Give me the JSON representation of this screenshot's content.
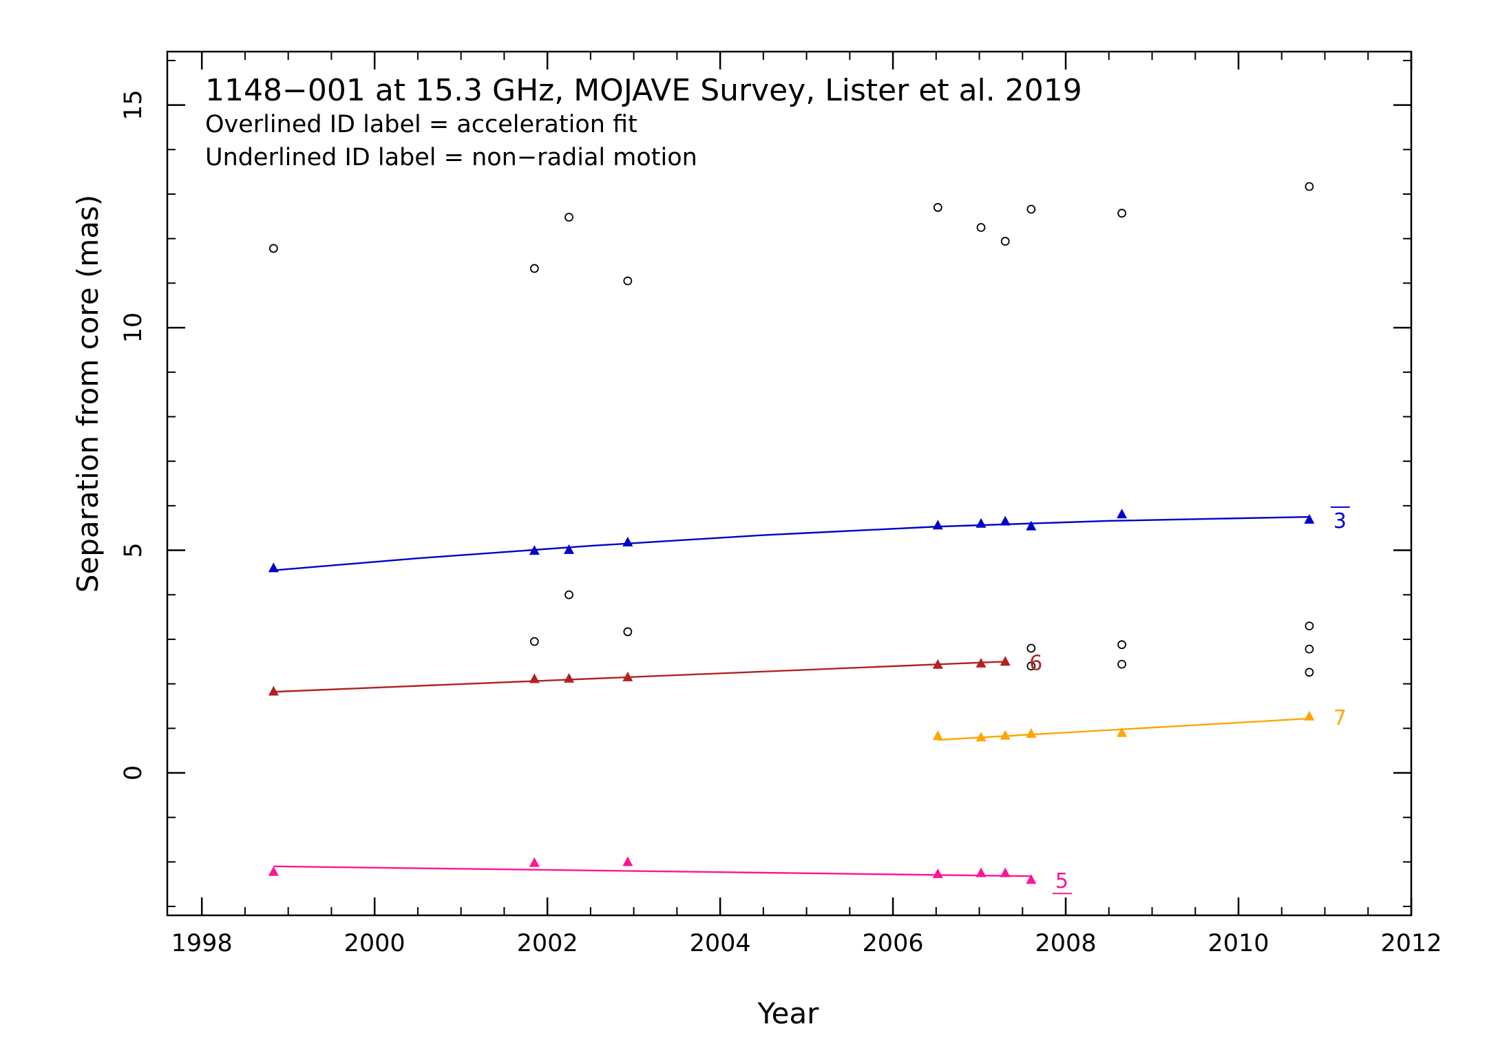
{
  "chart_data": {
    "type": "scatter",
    "title": "1148−001 at 15.3 GHz, MOJAVE Survey, Lister et al. 2019",
    "subtitle_lines": [
      "Overlined ID label = acceleration fit",
      "Underlined ID label = non−radial motion"
    ],
    "xlabel": "Year",
    "ylabel": "Separation from core (mas)",
    "xlim": [
      1997.6,
      2012.0
    ],
    "ylim": [
      -3.2,
      16.2
    ],
    "xticks": [
      1998,
      2000,
      2002,
      2004,
      2006,
      2008,
      2010,
      2012
    ],
    "xtick_labels": [
      "1998",
      "2000",
      "2002",
      "2004",
      "2006",
      "2008",
      "2010",
      "2012"
    ],
    "yticks": [
      0,
      5,
      10,
      15
    ],
    "ytick_labels": [
      "0",
      "5",
      "10",
      "15"
    ],
    "x_minor_step": 0.5,
    "y_minor_step": 1,
    "grid": false,
    "series": [
      {
        "name": "3",
        "label_style": "overline",
        "color": "#0000cc",
        "marker": "triangle",
        "points": [
          [
            1998.83,
            4.6
          ],
          [
            2001.85,
            4.99
          ],
          [
            2002.25,
            5.01
          ],
          [
            2002.93,
            5.18
          ],
          [
            2006.52,
            5.56
          ],
          [
            2007.02,
            5.6
          ],
          [
            2007.3,
            5.65
          ],
          [
            2007.6,
            5.54
          ],
          [
            2008.65,
            5.81
          ],
          [
            2010.82,
            5.69
          ]
        ],
        "fit": [
          [
            1998.83,
            4.55
          ],
          [
            2000.5,
            4.82
          ],
          [
            2002.5,
            5.1
          ],
          [
            2004.5,
            5.34
          ],
          [
            2006.5,
            5.53
          ],
          [
            2008.5,
            5.66
          ],
          [
            2010.82,
            5.75
          ]
        ]
      },
      {
        "name": "6",
        "label_style": "plain",
        "color": "#b22222",
        "marker": "triangle",
        "points": [
          [
            1998.83,
            1.83
          ],
          [
            2001.85,
            2.11
          ],
          [
            2002.25,
            2.12
          ],
          [
            2002.93,
            2.15
          ],
          [
            2006.52,
            2.43
          ],
          [
            2007.02,
            2.46
          ],
          [
            2007.3,
            2.5
          ]
        ],
        "fit": [
          [
            1998.83,
            1.82
          ],
          [
            2007.3,
            2.5
          ]
        ]
      },
      {
        "name": "7",
        "label_style": "plain",
        "color": "#ffa500",
        "marker": "triangle",
        "points": [
          [
            2006.52,
            0.83
          ],
          [
            2007.02,
            0.8
          ],
          [
            2007.3,
            0.84
          ],
          [
            2007.6,
            0.88
          ],
          [
            2008.65,
            0.9
          ],
          [
            2010.82,
            1.27
          ]
        ],
        "fit": [
          [
            2006.52,
            0.74
          ],
          [
            2010.82,
            1.22
          ]
        ]
      },
      {
        "name": "5",
        "label_style": "underline",
        "color": "#ff1493",
        "marker": "triangle",
        "points": [
          [
            1998.83,
            -2.22
          ],
          [
            2001.85,
            -2.02
          ],
          [
            2002.93,
            -2.0
          ],
          [
            2006.52,
            -2.27
          ],
          [
            2007.02,
            -2.25
          ],
          [
            2007.3,
            -2.25
          ],
          [
            2007.6,
            -2.4
          ]
        ],
        "fit": [
          [
            1998.83,
            -2.1
          ],
          [
            2007.6,
            -2.32
          ]
        ]
      },
      {
        "name": "",
        "color": "#000000",
        "marker": "open-circle",
        "points": [
          [
            1998.83,
            11.78
          ],
          [
            2001.85,
            11.33
          ],
          [
            2002.25,
            12.48
          ],
          [
            2002.93,
            11.05
          ],
          [
            2006.52,
            12.7
          ],
          [
            2007.02,
            12.25
          ],
          [
            2007.3,
            11.94
          ],
          [
            2007.6,
            12.66
          ],
          [
            2008.65,
            12.57
          ],
          [
            2010.82,
            13.17
          ],
          [
            2001.85,
            2.95
          ],
          [
            2002.25,
            4.0
          ],
          [
            2002.93,
            3.17
          ],
          [
            2007.6,
            2.8
          ],
          [
            2007.6,
            2.4
          ],
          [
            2008.65,
            2.88
          ],
          [
            2008.65,
            2.44
          ],
          [
            2010.82,
            3.3
          ],
          [
            2010.82,
            2.78
          ],
          [
            2010.82,
            2.26
          ]
        ]
      }
    ]
  }
}
